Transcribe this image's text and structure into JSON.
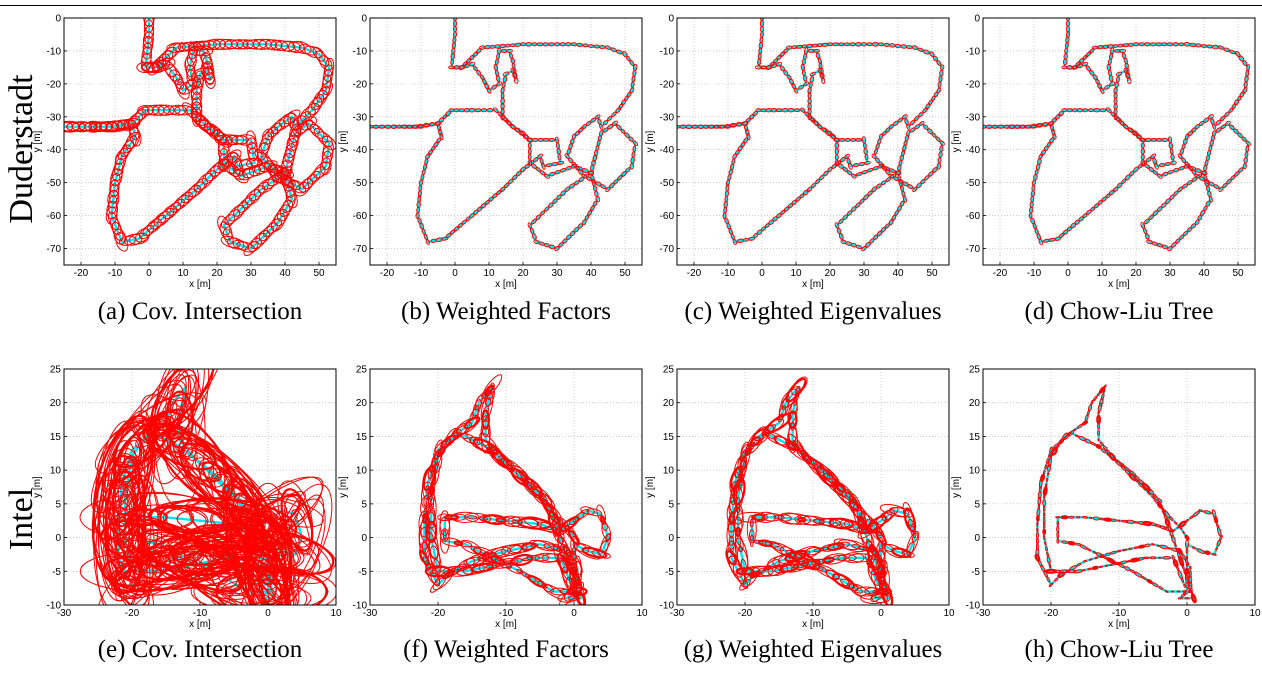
{
  "row_labels": [
    "Duderstadt",
    "Intel"
  ],
  "panels": [
    {
      "caption": "(a) Cov. Intersection",
      "dataset": "Duderstadt",
      "spread": "wide"
    },
    {
      "caption": "(b) Weighted Factors",
      "dataset": "Duderstadt",
      "spread": "tight"
    },
    {
      "caption": "(c) Weighted Eigenvalues",
      "dataset": "Duderstadt",
      "spread": "tight"
    },
    {
      "caption": "(d) Chow-Liu Tree",
      "dataset": "Duderstadt",
      "spread": "tight"
    },
    {
      "caption": "(e) Cov. Intersection",
      "dataset": "Intel",
      "spread": "wide"
    },
    {
      "caption": "(f) Weighted Factors",
      "dataset": "Intel",
      "spread": "medium"
    },
    {
      "caption": "(g) Weighted Eigenvalues",
      "dataset": "Intel",
      "spread": "medium"
    },
    {
      "caption": "(h) Chow-Liu Tree",
      "dataset": "Intel",
      "spread": "tight"
    }
  ],
  "colors": {
    "ellipse": "#ff0000",
    "trajectory": "#00e5ee",
    "grid": "#b0b0b0"
  },
  "chart_data": [
    {
      "type": "scatter",
      "dataset": "Duderstadt",
      "xlabel": "x [m]",
      "ylabel": "y [m]",
      "xlim": [
        -25,
        55
      ],
      "ylim": [
        -75,
        0
      ],
      "xticks": [
        -20,
        -10,
        0,
        10,
        20,
        30,
        40,
        50
      ],
      "yticks": [
        0,
        -10,
        -20,
        -30,
        -40,
        -50,
        -60,
        -70
      ],
      "grid": true,
      "trajectory": [
        [
          0,
          0
        ],
        [
          0,
          -5
        ],
        [
          -0.5,
          -10
        ],
        [
          -1,
          -15
        ],
        [
          2,
          -15
        ],
        [
          4,
          -13
        ],
        [
          8,
          -9
        ],
        [
          20,
          -8
        ],
        [
          35,
          -8
        ],
        [
          45,
          -9
        ],
        [
          50,
          -11
        ],
        [
          53,
          -15
        ],
        [
          52,
          -22
        ],
        [
          48,
          -28
        ],
        [
          43,
          -33
        ],
        [
          42,
          -30
        ],
        [
          38,
          -33
        ],
        [
          35,
          -36
        ],
        [
          33,
          -42
        ],
        [
          38,
          -48
        ],
        [
          45,
          -52
        ],
        [
          52,
          -45
        ],
        [
          53,
          -38
        ],
        [
          47,
          -32
        ],
        [
          43,
          -35
        ],
        [
          40,
          -47
        ],
        [
          33,
          -52
        ],
        [
          27,
          -58
        ],
        [
          22,
          -63
        ],
        [
          24,
          -68
        ],
        [
          30,
          -70
        ],
        [
          38,
          -62
        ],
        [
          42,
          -55
        ],
        [
          40,
          -47
        ],
        [
          35,
          -45
        ],
        [
          27,
          -48
        ],
        [
          22,
          -44
        ],
        [
          22,
          -37
        ],
        [
          30,
          -37
        ],
        [
          31,
          -44
        ],
        [
          26,
          -45
        ],
        [
          25,
          -42
        ],
        [
          20,
          -46
        ],
        [
          14,
          -52
        ],
        [
          5,
          -60
        ],
        [
          -3,
          -67
        ],
        [
          -8,
          -68
        ],
        [
          -11,
          -60
        ],
        [
          -10,
          -50
        ],
        [
          -8,
          -42
        ],
        [
          -4,
          -36
        ],
        [
          -5,
          -32
        ],
        [
          -12,
          -33
        ],
        [
          -18,
          -33
        ],
        [
          -25,
          -33
        ],
        [
          -18,
          -33
        ],
        [
          -10,
          -33
        ],
        [
          -5,
          -32
        ],
        [
          -1,
          -28
        ],
        [
          5,
          -28
        ],
        [
          12,
          -28
        ],
        [
          17,
          -33
        ],
        [
          20,
          -35
        ],
        [
          22,
          -37
        ],
        [
          17,
          -33
        ],
        [
          14,
          -30
        ],
        [
          14,
          -22
        ],
        [
          15,
          -17
        ],
        [
          17,
          -16
        ],
        [
          18,
          -19
        ],
        [
          17,
          -13
        ],
        [
          16,
          -10
        ],
        [
          13,
          -10
        ],
        [
          12,
          -15
        ],
        [
          13,
          -20
        ],
        [
          10,
          -22
        ],
        [
          8,
          -18
        ],
        [
          5,
          -14
        ],
        [
          2,
          -15
        ],
        [
          -1,
          -15
        ]
      ]
    },
    {
      "type": "scatter",
      "dataset": "Intel",
      "xlabel": "x [m]",
      "ylabel": "y [m]",
      "xlim": [
        -30,
        10
      ],
      "ylim": [
        -10,
        25
      ],
      "xticks": [
        -30,
        -20,
        -10,
        0,
        10
      ],
      "yticks": [
        25,
        20,
        15,
        10,
        5,
        0,
        -5,
        -10
      ],
      "grid": true,
      "trajectory": [
        [
          0,
          0
        ],
        [
          -1,
          1.5
        ],
        [
          -3,
          3.5
        ],
        [
          -5,
          6
        ],
        [
          -8,
          9
        ],
        [
          -10,
          11
        ],
        [
          -13,
          13.5
        ],
        [
          -17,
          15.5
        ],
        [
          -20,
          13
        ],
        [
          -21.5,
          8
        ],
        [
          -22,
          2
        ],
        [
          -22,
          -3
        ],
        [
          -20,
          -7
        ],
        [
          -18.5,
          -5.5
        ],
        [
          -15,
          -3.5
        ],
        [
          -10,
          -2
        ],
        [
          -5,
          -1
        ],
        [
          -1,
          -2
        ],
        [
          0.5,
          -4.5
        ],
        [
          0.5,
          -8
        ],
        [
          -3,
          -8
        ],
        [
          -8,
          -5
        ],
        [
          -12,
          -3
        ],
        [
          -16,
          -1
        ],
        [
          -19,
          -0.5
        ],
        [
          -19,
          3
        ],
        [
          -15,
          3
        ],
        [
          -10,
          2.5
        ],
        [
          -5,
          2
        ],
        [
          -2,
          1
        ],
        [
          0,
          2.5
        ],
        [
          2,
          4
        ],
        [
          4,
          3.5
        ],
        [
          5,
          0
        ],
        [
          4,
          -2.5
        ],
        [
          2,
          -2
        ],
        [
          0,
          -1
        ],
        [
          0,
          -4
        ],
        [
          0,
          -8
        ],
        [
          -1,
          -9
        ],
        [
          1,
          -9
        ],
        [
          0,
          -6
        ],
        [
          -4,
          5.5
        ],
        [
          -8,
          9.5
        ],
        [
          -11,
          12
        ],
        [
          -13,
          14.5
        ],
        [
          -13,
          18.5
        ],
        [
          -12,
          22.5
        ],
        [
          -14,
          20
        ],
        [
          -15,
          17
        ],
        [
          -18,
          15
        ],
        [
          -20,
          12
        ],
        [
          -21,
          6
        ],
        [
          -21,
          0
        ],
        [
          -20,
          -5
        ],
        [
          -16,
          -5
        ],
        [
          -11,
          -4
        ],
        [
          -6,
          -3
        ],
        [
          -2,
          -3
        ],
        [
          0,
          -8
        ]
      ]
    }
  ]
}
